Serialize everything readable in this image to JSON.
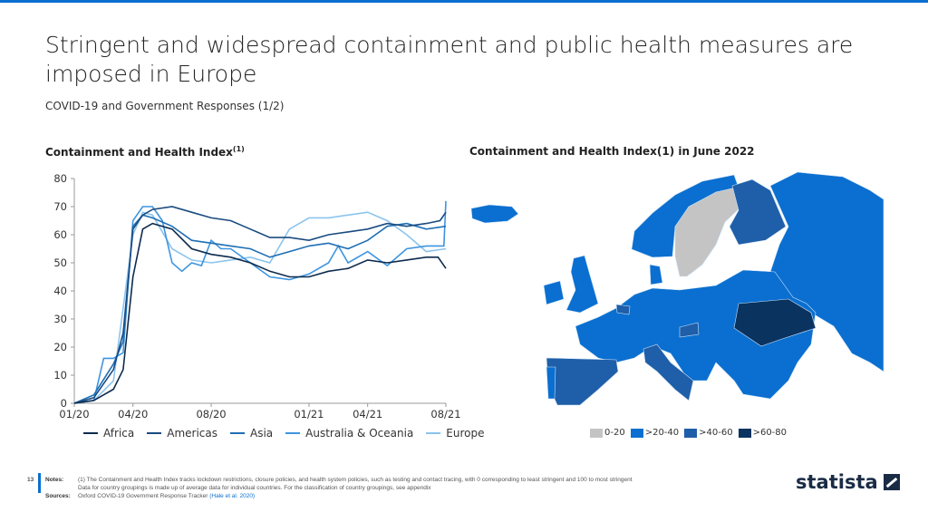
{
  "title": "Stringent and widespread containment and public health measures are imposed in Europe",
  "subtitle": "COVID-19 and Government Responses (1/2)",
  "left_title": "Containment and Health Index",
  "left_title_sup": "(1)",
  "right_title": "Containment and Health Index",
  "right_title_sup": "(1)",
  "right_title_suffix": " in June 2022",
  "chart_data": [
    {
      "type": "line",
      "title": "Containment and Health Index(1)",
      "ylim": [
        0,
        80
      ],
      "yticks": [
        0,
        10,
        20,
        30,
        40,
        50,
        60,
        70,
        80
      ],
      "xticks": [
        {
          "label": "01/20",
          "m": 0
        },
        {
          "label": "04/20",
          "m": 3
        },
        {
          "label": "08/20",
          "m": 7
        },
        {
          "label": "01/21",
          "m": 12
        },
        {
          "label": "04/21",
          "m": 15
        },
        {
          "label": "08/21",
          "m": 19
        }
      ],
      "x_unit": "months since 01/2020",
      "series": [
        {
          "name": "Africa",
          "color": "#0d2b4e",
          "x": [
            0,
            1,
            2,
            2.5,
            3,
            3.5,
            4,
            5,
            6,
            7,
            8,
            9,
            10,
            11,
            12,
            13,
            14,
            15,
            16,
            17,
            18,
            18.6,
            19
          ],
          "y": [
            0,
            1,
            5,
            12,
            45,
            62,
            64,
            62,
            55,
            53,
            52,
            50,
            47,
            45,
            45,
            47,
            48,
            51,
            50,
            51,
            52,
            52,
            48
          ]
        },
        {
          "name": "Americas",
          "color": "#1a4b80",
          "x": [
            0,
            1,
            2,
            2.5,
            3,
            3.5,
            4,
            5,
            6,
            7,
            8,
            9,
            10,
            11,
            12,
            13,
            14,
            15,
            16,
            17,
            18,
            18.7,
            19
          ],
          "y": [
            0,
            2,
            12,
            25,
            62,
            67,
            69,
            70,
            68,
            66,
            65,
            62,
            59,
            59,
            58,
            60,
            61,
            62,
            64,
            63,
            64,
            65,
            68
          ]
        },
        {
          "name": "Asia",
          "color": "#1f6fb5",
          "x": [
            0,
            1,
            2,
            2.5,
            3,
            3.5,
            4,
            5,
            6,
            7,
            8,
            9,
            10,
            11,
            12,
            13,
            14,
            15,
            16,
            17,
            18,
            19
          ],
          "y": [
            0,
            3,
            14,
            22,
            63,
            67,
            66,
            63,
            58,
            57,
            56,
            55,
            52,
            54,
            56,
            57,
            55,
            58,
            63,
            64,
            62,
            63
          ]
        },
        {
          "name": "Australia & Oceania",
          "color": "#3d95e0",
          "x": [
            0,
            1,
            1.5,
            2,
            2.5,
            3,
            3.5,
            4,
            4.5,
            5,
            5.5,
            6,
            6.5,
            7,
            7.5,
            8,
            9,
            10,
            11,
            12,
            13,
            13.5,
            14,
            15,
            16,
            17,
            18,
            18.9,
            19
          ],
          "y": [
            0,
            1,
            16,
            16,
            18,
            65,
            70,
            70,
            65,
            50,
            47,
            50,
            49,
            58,
            55,
            55,
            50,
            45,
            44,
            46,
            50,
            56,
            50,
            54,
            49,
            55,
            56,
            56,
            72
          ]
        },
        {
          "name": "Europe",
          "color": "#8cc4ee",
          "x": [
            0,
            1,
            2,
            3,
            3.5,
            4,
            5,
            6,
            7,
            8,
            9,
            10,
            11,
            12,
            13,
            14,
            15,
            16,
            17,
            18,
            19
          ],
          "y": [
            0,
            1,
            8,
            60,
            68,
            67,
            55,
            51,
            50,
            51,
            52,
            50,
            62,
            66,
            66,
            67,
            68,
            65,
            60,
            54,
            55
          ]
        }
      ]
    },
    {
      "type": "choropleth",
      "title": "Containment and Health Index(1) in June 2022",
      "legend": [
        {
          "label": "0-20",
          "color": "#c4c4c4"
        },
        {
          "label": ">20-40",
          "color": "#0a6fd0"
        },
        {
          "label": ">40-60",
          "color": "#1f5ea8"
        },
        {
          "label": ">60-80",
          "color": "#0a3360"
        }
      ]
    }
  ],
  "footer": {
    "page": "13",
    "notes_label": "Notes:",
    "notes_1": "(1) The Containment and Health Index tracks lockdown restrictions, closure policies, and health system policies, such as testing and contact tracing, with 0 corresponding to least stringent and 100 to most stringent",
    "notes_2": "Data for country groupings is made up of average data for individual countries. For the classification of country groupings, see appendix",
    "sources_label": "Sources:",
    "sources": "Oxford COVID-19 Government Response Tracker",
    "sources_link": "(Hale et al. 2020)"
  },
  "logo": "statista"
}
